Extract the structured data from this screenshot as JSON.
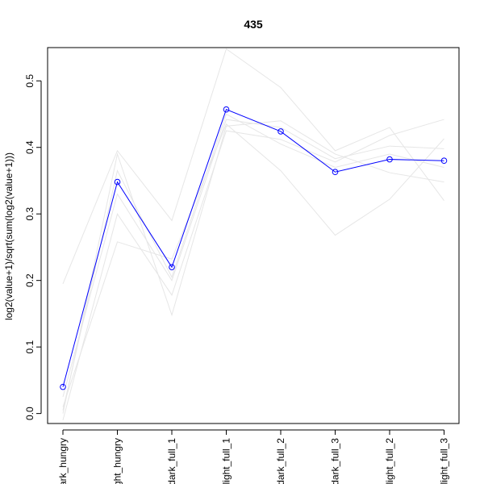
{
  "chart_data": {
    "type": "line",
    "title": "435",
    "xlabel": "",
    "ylabel": "log2(value+1)/sqrt(sum(log2(value+1)))",
    "categories": [
      "dark_hungry",
      "light_hungry",
      "dark_full_1",
      "light_full_1",
      "dark_full_2",
      "dark_full_3",
      "light_full_2",
      "light_full_3"
    ],
    "category_labels_visible": [
      "ark_hungry",
      "ght_hungry",
      "dark_full_1",
      "light_full_1",
      "dark_full_2",
      "dark_full_3",
      "light_full_2",
      "light_full_3"
    ],
    "ylim": [
      -0.015,
      0.55
    ],
    "yticks": [
      0.0,
      0.1,
      0.2,
      0.3,
      0.4,
      0.5
    ],
    "ytick_labels": [
      "0.0",
      "0.1",
      "0.2",
      "0.3",
      "0.4",
      "0.5"
    ],
    "grid": false,
    "highlight_color": "#0000ff",
    "background_color": "#e6e6e6",
    "series": [
      {
        "values": [
          0.04,
          0.348,
          0.22,
          0.457,
          0.424,
          0.363,
          0.382,
          0.38
        ],
        "highlight": true
      },
      {
        "values": [
          0.195,
          0.395,
          0.29,
          0.548,
          0.49,
          0.395,
          0.43,
          0.32
        ]
      },
      {
        "values": [
          0.01,
          0.258,
          0.232,
          0.435,
          0.365,
          0.268,
          0.322,
          0.413
        ]
      },
      {
        "values": [
          0.0,
          0.39,
          0.148,
          0.432,
          0.44,
          0.39,
          0.362,
          0.348
        ]
      },
      {
        "values": [
          -0.01,
          0.3,
          0.178,
          0.425,
          0.412,
          0.378,
          0.418,
          0.442
        ]
      },
      {
        "values": [
          0.025,
          0.33,
          0.2,
          0.442,
          0.43,
          0.383,
          0.402,
          0.398
        ]
      },
      {
        "values": [
          0.005,
          0.365,
          0.205,
          0.45,
          0.405,
          0.37,
          0.39,
          0.37
        ]
      }
    ]
  }
}
